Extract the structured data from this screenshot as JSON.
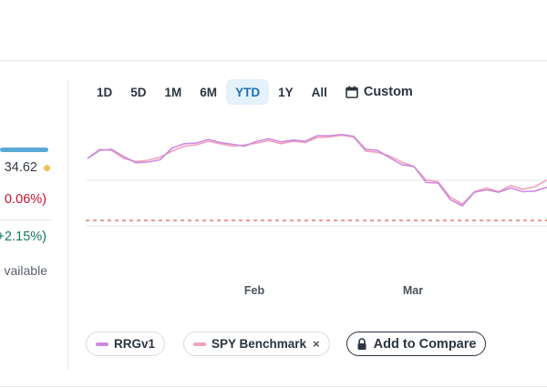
{
  "colors": {
    "accent": "#1b6fb8",
    "rrgv1": "#c98be0",
    "spy": "#f2a2ba",
    "negative": "#c8102e",
    "positive": "#117a55",
    "baseline": "#e05b5b"
  },
  "left_stats": {
    "price": "34.62",
    "day_change": "0.06%)",
    "ytd_change": "+2.15%)",
    "note": "vailable"
  },
  "tabs": [
    {
      "label": "1D"
    },
    {
      "label": "5D"
    },
    {
      "label": "1M"
    },
    {
      "label": "6M"
    },
    {
      "label": "YTD",
      "active": true
    },
    {
      "label": "1Y"
    },
    {
      "label": "All"
    }
  ],
  "custom": {
    "label": "Custom",
    "icon": "calendar-icon"
  },
  "chart_data": {
    "type": "line",
    "x_ticks": [
      "Feb",
      "Mar"
    ],
    "series": [
      {
        "name": "RRGv1",
        "color": "#c98be0",
        "values": [
          100.0,
          101.3,
          101.5,
          100.3,
          99.3,
          99.4,
          99.8,
          101.7,
          102.4,
          102.5,
          103.1,
          102.6,
          102.3,
          102.0,
          102.8,
          103.2,
          102.7,
          103.0,
          102.8,
          103.7,
          103.7,
          103.9,
          103.6,
          101.5,
          101.3,
          100.1,
          99.0,
          98.7,
          96.1,
          96.0,
          93.3,
          92.3,
          94.5,
          94.9,
          94.5,
          95.2,
          94.6,
          94.7,
          95.3
        ]
      },
      {
        "name": "SPY Benchmark",
        "color": "#f2a2ba",
        "values": [
          100.0,
          101.5,
          101.3,
          100.0,
          99.5,
          99.7,
          100.2,
          101.2,
          102.0,
          102.2,
          102.8,
          102.4,
          102.0,
          102.2,
          102.5,
          102.9,
          102.4,
          102.8,
          102.6,
          103.4,
          103.5,
          103.8,
          103.5,
          101.2,
          101.0,
          100.4,
          99.4,
          98.7,
          96.5,
          96.2,
          93.7,
          92.6,
          94.6,
          95.2,
          94.6,
          95.6,
          95.0,
          95.4,
          96.5
        ]
      }
    ],
    "baseline": 92.0,
    "ylim": [
      88,
      108
    ],
    "grid": true
  },
  "legend": {
    "chips": [
      {
        "label": "RRGv1",
        "color": "#c98be0",
        "removable": false
      },
      {
        "label": "SPY Benchmark",
        "color": "#f2a2ba",
        "removable": true,
        "close": "×"
      }
    ],
    "add_compare": "Add to Compare"
  }
}
